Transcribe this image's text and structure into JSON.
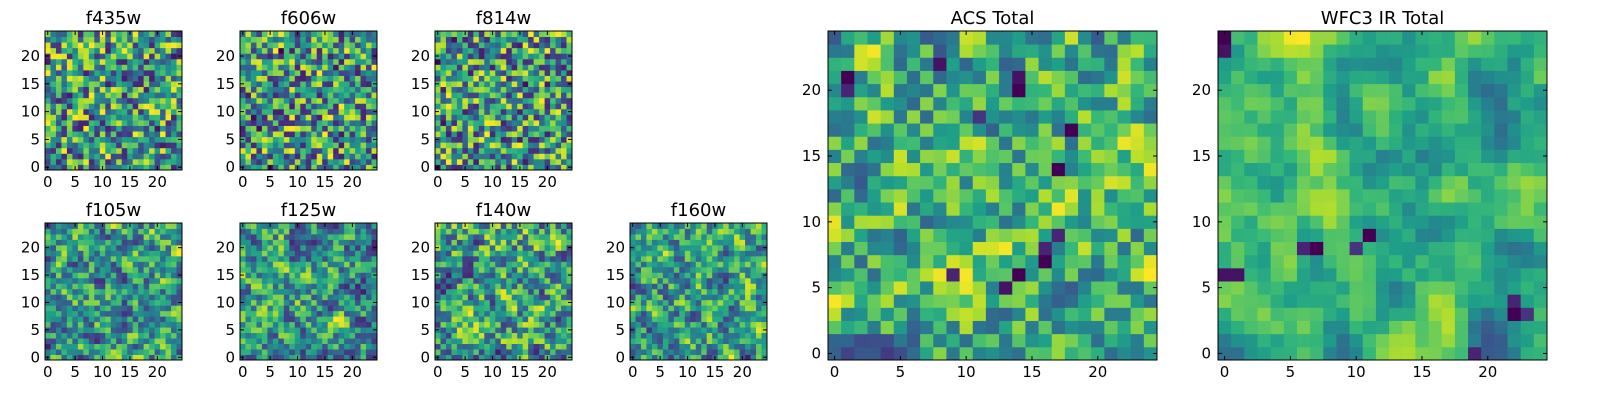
{
  "chart_data": [
    {
      "type": "heatmap",
      "title": "f435w",
      "colormap": "viridis",
      "grid": false,
      "shape": [
        25,
        25
      ],
      "xticks": [
        0,
        5,
        10,
        15,
        20
      ],
      "yticks": [
        0,
        5,
        10,
        15,
        20
      ],
      "xlim": [
        -0.5,
        24.5
      ],
      "ylim": [
        -0.5,
        24.5
      ],
      "seed": 11,
      "smooth": 0,
      "vmin_frac": 0.0,
      "spots": []
    },
    {
      "type": "heatmap",
      "title": "f606w",
      "colormap": "viridis",
      "grid": false,
      "shape": [
        25,
        25
      ],
      "xticks": [
        0,
        5,
        10,
        15,
        20
      ],
      "yticks": [
        0,
        5,
        10,
        15,
        20
      ],
      "xlim": [
        -0.5,
        24.5
      ],
      "ylim": [
        -0.5,
        24.5
      ],
      "seed": 23,
      "smooth": 0,
      "vmin_frac": 0.0,
      "spots": []
    },
    {
      "type": "heatmap",
      "title": "f814w",
      "colormap": "viridis",
      "grid": false,
      "shape": [
        25,
        25
      ],
      "xticks": [
        0,
        5,
        10,
        15,
        20
      ],
      "yticks": [
        0,
        5,
        10,
        15,
        20
      ],
      "xlim": [
        -0.5,
        24.5
      ],
      "ylim": [
        -0.5,
        24.5
      ],
      "seed": 37,
      "smooth": 0,
      "vmin_frac": 0.0,
      "spots": []
    },
    {
      "type": "heatmap",
      "title": "f105w",
      "colormap": "viridis",
      "grid": false,
      "shape": [
        25,
        25
      ],
      "xticks": [
        0,
        5,
        10,
        15,
        20
      ],
      "yticks": [
        0,
        5,
        10,
        15,
        20
      ],
      "xlim": [
        -0.5,
        24.5
      ],
      "ylim": [
        -0.5,
        24.5
      ],
      "seed": 41,
      "smooth": 1,
      "vmin_frac": 0.0,
      "spots": []
    },
    {
      "type": "heatmap",
      "title": "f125w",
      "colormap": "viridis",
      "grid": false,
      "shape": [
        25,
        25
      ],
      "xticks": [
        0,
        5,
        10,
        15,
        20
      ],
      "yticks": [
        0,
        5,
        10,
        15,
        20
      ],
      "xlim": [
        -0.5,
        24.5
      ],
      "ylim": [
        -0.5,
        24.5
      ],
      "seed": 53,
      "smooth": 1,
      "vmin_frac": 0.0,
      "spots": []
    },
    {
      "type": "heatmap",
      "title": "f140w",
      "colormap": "viridis",
      "grid": false,
      "shape": [
        25,
        25
      ],
      "xticks": [
        0,
        5,
        10,
        15,
        20
      ],
      "yticks": [
        0,
        5,
        10,
        15,
        20
      ],
      "xlim": [
        -0.5,
        24.5
      ],
      "ylim": [
        -0.5,
        24.5
      ],
      "seed": 67,
      "smooth": 1,
      "vmin_frac": 0.0,
      "spots": []
    },
    {
      "type": "heatmap",
      "title": "f160w",
      "colormap": "viridis",
      "grid": false,
      "shape": [
        25,
        25
      ],
      "xticks": [
        0,
        5,
        10,
        15,
        20
      ],
      "yticks": [
        0,
        5,
        10,
        15,
        20
      ],
      "xlim": [
        -0.5,
        24.5
      ],
      "ylim": [
        -0.5,
        24.5
      ],
      "seed": 79,
      "smooth": 1,
      "vmin_frac": 0.0,
      "spots": []
    },
    {
      "type": "heatmap",
      "title": "ACS Total",
      "colormap": "viridis",
      "grid": false,
      "shape": [
        25,
        25
      ],
      "xticks": [
        0,
        5,
        10,
        15,
        20
      ],
      "yticks": [
        0,
        5,
        10,
        15,
        20
      ],
      "xlim": [
        -0.5,
        24.5
      ],
      "ylim": [
        -0.5,
        24.5
      ],
      "seed": 97,
      "smooth": 1,
      "vmin_frac": 0.1,
      "spots": [
        [
          1,
          21,
          0.0
        ],
        [
          1,
          20,
          0.1
        ],
        [
          8,
          22,
          0.05
        ],
        [
          14,
          20,
          0.0
        ],
        [
          14,
          21,
          0.05
        ],
        [
          16,
          7,
          0.0
        ],
        [
          16,
          8,
          0.1
        ],
        [
          17,
          14,
          0.0
        ],
        [
          18,
          17,
          0.0
        ],
        [
          14,
          6,
          0.0
        ],
        [
          13,
          5,
          0.05
        ],
        [
          17,
          9,
          0.1
        ],
        [
          9,
          6,
          0.1
        ],
        [
          11,
          18,
          0.15
        ]
      ]
    },
    {
      "type": "heatmap",
      "title": "WFC3 IR Total",
      "colormap": "viridis",
      "grid": false,
      "shape": [
        25,
        25
      ],
      "xticks": [
        0,
        5,
        10,
        15,
        20
      ],
      "yticks": [
        0,
        5,
        10,
        15,
        20
      ],
      "xlim": [
        -0.5,
        24.5
      ],
      "ylim": [
        -0.5,
        24.5
      ],
      "seed": 131,
      "smooth": 3,
      "vmin_frac": 0.2,
      "spots": [
        [
          0,
          24,
          0.0
        ],
        [
          0,
          23,
          0.05
        ],
        [
          0,
          6,
          0.05
        ],
        [
          1,
          6,
          0.05
        ],
        [
          6,
          8,
          0.1
        ],
        [
          7,
          8,
          0.0
        ],
        [
          10,
          8,
          0.15
        ],
        [
          11,
          9,
          0.0
        ],
        [
          22,
          3,
          0.0
        ],
        [
          22,
          4,
          0.1
        ],
        [
          23,
          3,
          0.15
        ],
        [
          19,
          0,
          0.1
        ]
      ]
    }
  ]
}
